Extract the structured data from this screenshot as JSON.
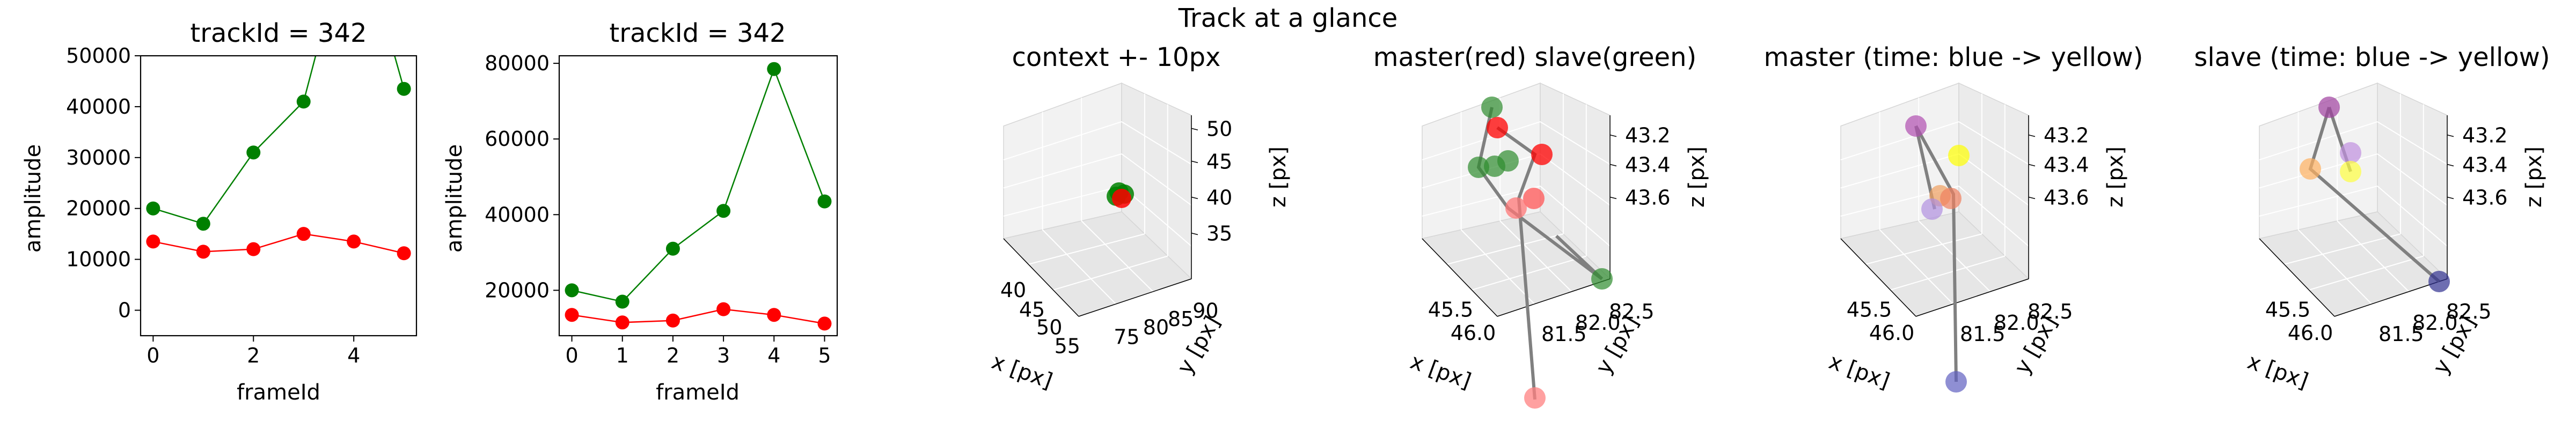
{
  "figure": {
    "suptitle": "Track at a glance"
  },
  "colors": {
    "master": "#ff0000",
    "slave": "#008000",
    "line3d": "#808080"
  },
  "chart_data": [
    {
      "type": "line",
      "title": "trackId = 342",
      "xlabel": "frameId",
      "ylabel": "amplitude",
      "ylim": [
        -5000,
        50000
      ],
      "xlim": [
        -0.25,
        5.25
      ],
      "xticks": [
        "0",
        "2",
        "4"
      ],
      "yticks": [
        "0",
        "10000",
        "20000",
        "30000",
        "40000",
        "50000"
      ],
      "ytick_values": [
        0,
        10000,
        20000,
        30000,
        40000,
        50000
      ],
      "xtick_values": [
        0,
        2,
        4
      ],
      "x": [
        0,
        1,
        2,
        3,
        4,
        5
      ],
      "series": [
        {
          "color": "#008000",
          "values": [
            20000,
            17000,
            31000,
            41000,
            78500,
            43500
          ]
        },
        {
          "color": "#ff0000",
          "values": [
            13500,
            11500,
            12000,
            15000,
            13500,
            11200
          ]
        }
      ],
      "grid": false
    },
    {
      "type": "line",
      "title": "trackId = 342",
      "xlabel": "frameId",
      "ylabel": "amplitude",
      "ylim": [
        8000,
        82000
      ],
      "xlim": [
        -0.25,
        5.25
      ],
      "xticks": [
        "0",
        "1",
        "2",
        "3",
        "4",
        "5"
      ],
      "xtick_values": [
        0,
        1,
        2,
        3,
        4,
        5
      ],
      "yticks": [
        "20000",
        "40000",
        "60000",
        "80000"
      ],
      "ytick_values": [
        20000,
        40000,
        60000,
        80000
      ],
      "x": [
        0,
        1,
        2,
        3,
        4,
        5
      ],
      "series": [
        {
          "color": "#008000",
          "values": [
            20000,
            17000,
            31000,
            41000,
            78500,
            43500
          ]
        },
        {
          "color": "#ff0000",
          "values": [
            13500,
            11500,
            12000,
            15000,
            13500,
            11200
          ]
        }
      ],
      "grid": false
    },
    {
      "type": "scatter",
      "title": "context +- 10px",
      "xlabel": "x [px]",
      "ylabel": "y [px]",
      "zlabel": "z [px]",
      "xticks": [
        "40",
        "45",
        "50",
        "55"
      ],
      "yticks": [
        "75",
        "80",
        "85",
        "90"
      ],
      "zticks": [
        "35",
        "40",
        "45",
        "50"
      ],
      "points": [
        {
          "x": 45.8,
          "y": 82.1,
          "z": 43.4,
          "color": "#008000"
        },
        {
          "x": 45.9,
          "y": 82.0,
          "z": 43.5,
          "color": "#008000"
        },
        {
          "x": 45.7,
          "y": 82.2,
          "z": 43.3,
          "color": "#008000"
        },
        {
          "x": 45.8,
          "y": 82.0,
          "z": 43.4,
          "color": "#ff0000"
        }
      ]
    },
    {
      "type": "scatter",
      "title": "master(red) slave(green)",
      "xlabel": "x [px]",
      "ylabel": "y [px]",
      "zlabel": "z [px]",
      "xticks": [
        "45.5",
        "46.0"
      ],
      "yticks": [
        "81.5",
        "82.0",
        "82.5"
      ],
      "zticks": [
        "43.2",
        "43.4",
        "43.6"
      ],
      "points": []
    },
    {
      "type": "scatter",
      "title": "master (time: blue -> yellow)",
      "xlabel": "x [px]",
      "ylabel": "y [px]",
      "zlabel": "z [px]",
      "xticks": [
        "45.5",
        "46.0"
      ],
      "yticks": [
        "81.5",
        "82.0",
        "82.5"
      ],
      "zticks": [
        "43.2",
        "43.4",
        "43.6"
      ],
      "points": []
    },
    {
      "type": "scatter",
      "title": "slave (time: blue -> yellow)",
      "xlabel": "x [px]",
      "ylabel": "y [px]",
      "zlabel": "z [px]",
      "xticks": [
        "45.5",
        "46.0"
      ],
      "yticks": [
        "81.5",
        "82.0",
        "82.5"
      ],
      "zticks": [
        "43.2",
        "43.4",
        "43.6"
      ],
      "points": []
    }
  ]
}
